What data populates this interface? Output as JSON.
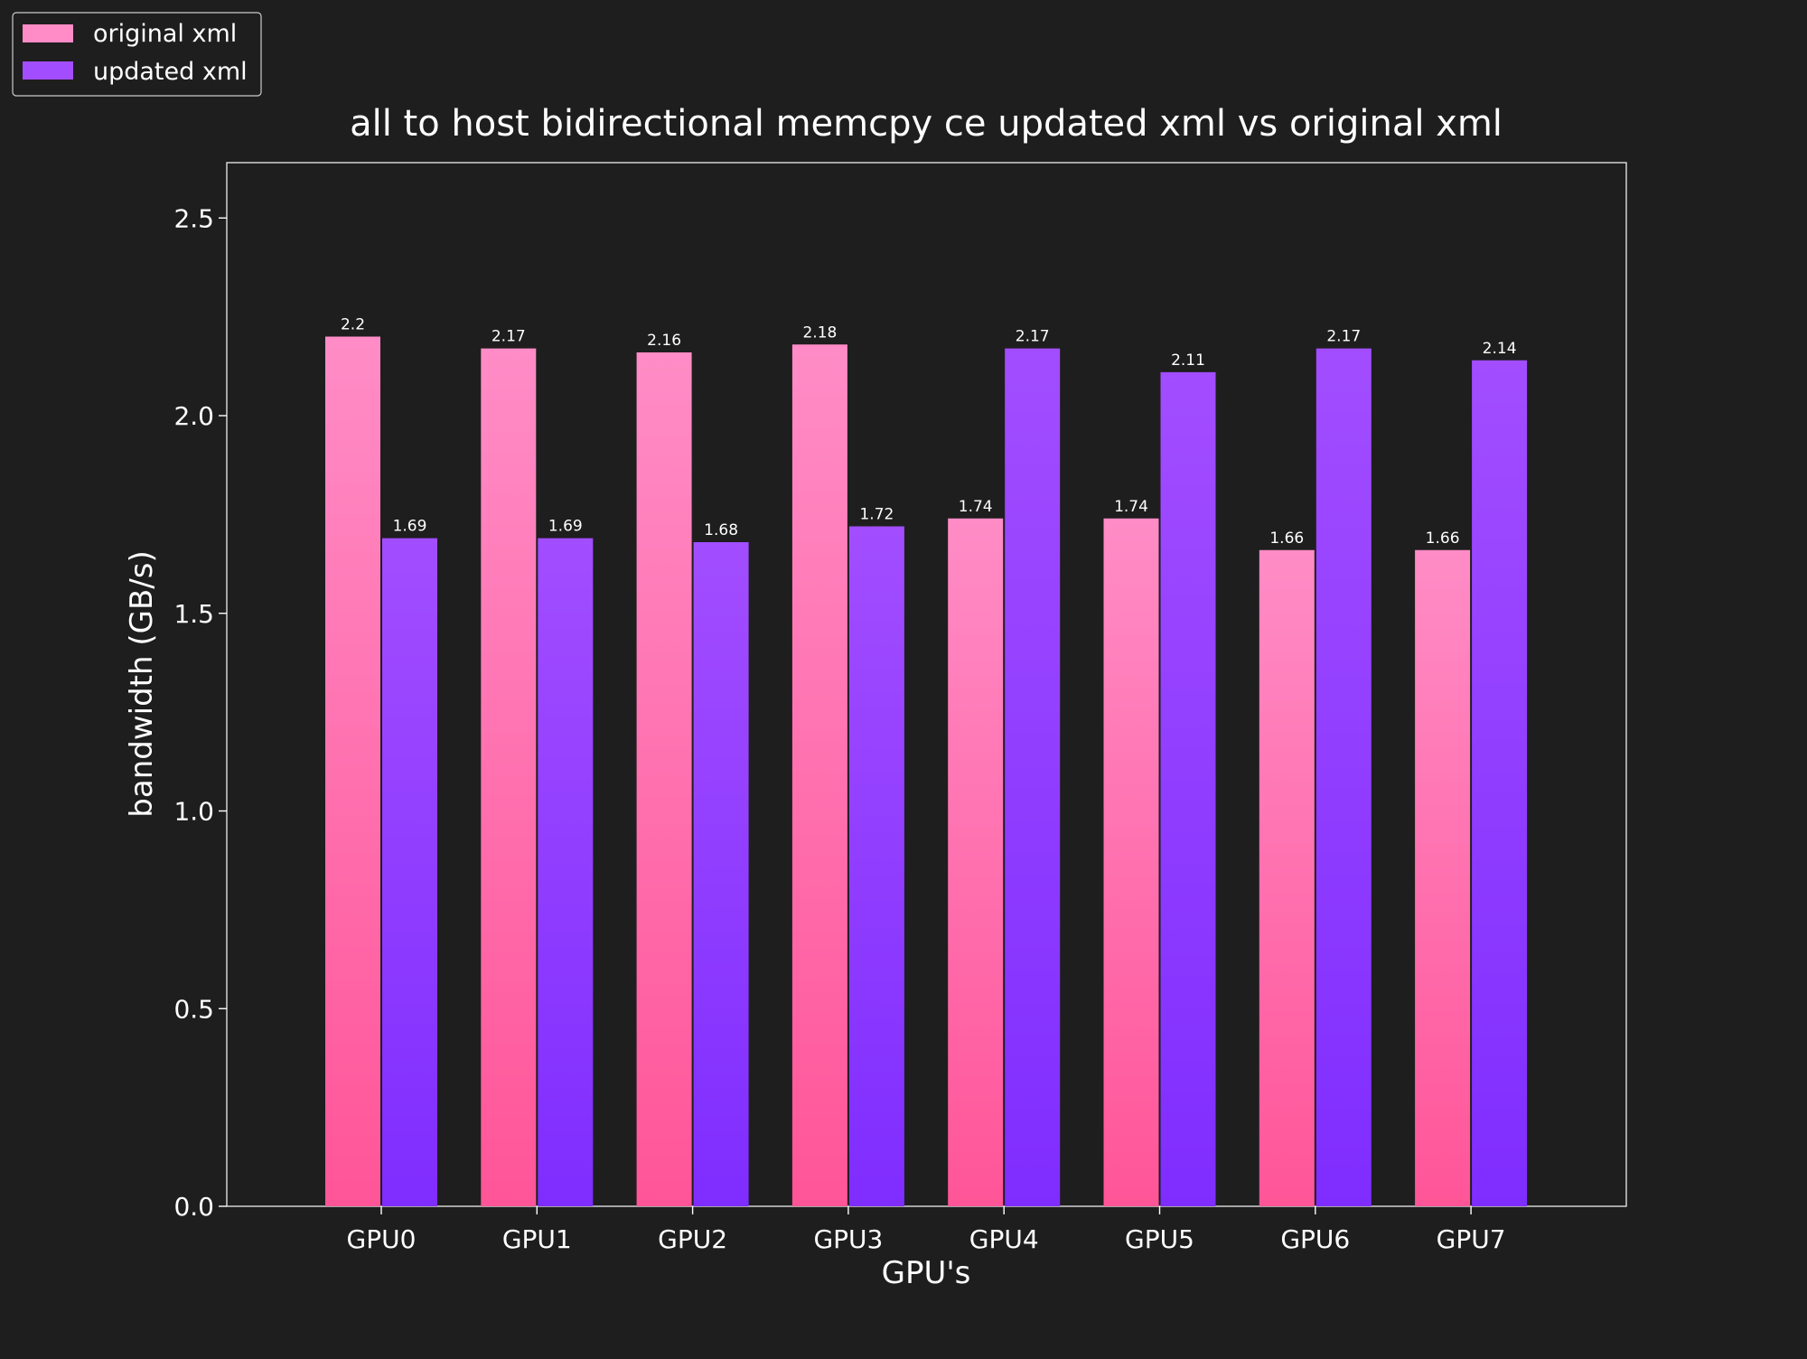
{
  "colors": {
    "background": "#1e1e1e",
    "axis": "#ffffff",
    "text": "#ffffff",
    "original_top": "#ff8cc6",
    "original_bottom": "#ff5598",
    "updated_top": "#a24dff",
    "updated_bottom": "#7f2dff"
  },
  "chart_data": {
    "type": "bar",
    "title": "all to host bidirectional memcpy ce updated xml vs original xml",
    "xlabel": "GPU's",
    "ylabel": "bandwidth (GB/s)",
    "categories": [
      "GPU0",
      "GPU1",
      "GPU2",
      "GPU3",
      "GPU4",
      "GPU5",
      "GPU6",
      "GPU7"
    ],
    "series": [
      {
        "name": "original xml",
        "values": [
          2.2,
          2.17,
          2.16,
          2.18,
          1.74,
          1.74,
          1.66,
          1.66
        ],
        "labels": [
          "2.2",
          "2.17",
          "2.16",
          "2.18",
          "1.74",
          "1.74",
          "1.66",
          "1.66"
        ]
      },
      {
        "name": "updated xml",
        "values": [
          1.69,
          1.69,
          1.68,
          1.72,
          2.17,
          2.11,
          2.17,
          2.14
        ],
        "labels": [
          "1.69",
          "1.69",
          "1.68",
          "1.72",
          "2.17",
          "2.11",
          "2.17",
          "2.14"
        ]
      }
    ],
    "ylim": [
      0,
      2.64
    ],
    "yticks": [
      0.0,
      0.5,
      1.0,
      1.5,
      2.0,
      2.5
    ],
    "ytick_labels": [
      "0.0",
      "0.5",
      "1.0",
      "1.5",
      "2.0",
      "2.5"
    ],
    "grid": false,
    "legend_position": "top-left"
  }
}
